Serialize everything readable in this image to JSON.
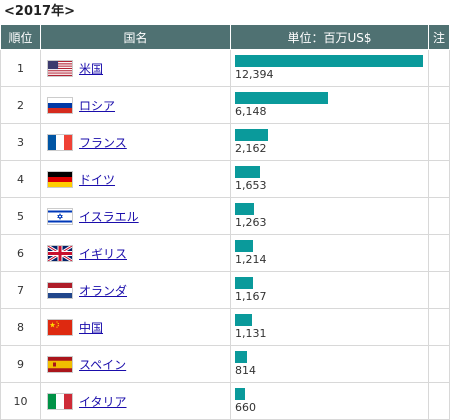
{
  "year_label": "<2017年>",
  "headers": {
    "rank": "順位",
    "country": "国名",
    "value": "単位：百万US$",
    "note": "注"
  },
  "max_value": 12394,
  "rows": [
    {
      "rank": "1",
      "country": "米国",
      "value": "12,394",
      "amount": 12394,
      "flag": "usa-flag-icon"
    },
    {
      "rank": "2",
      "country": "ロシア",
      "value": "6,148",
      "amount": 6148,
      "flag": "russia-flag-icon"
    },
    {
      "rank": "3",
      "country": "フランス",
      "value": "2,162",
      "amount": 2162,
      "flag": "france-flag-icon"
    },
    {
      "rank": "4",
      "country": "ドイツ",
      "value": "1,653",
      "amount": 1653,
      "flag": "germany-flag-icon"
    },
    {
      "rank": "5",
      "country": "イスラエル",
      "value": "1,263",
      "amount": 1263,
      "flag": "israel-flag-icon"
    },
    {
      "rank": "6",
      "country": "イギリス",
      "value": "1,214",
      "amount": 1214,
      "flag": "uk-flag-icon"
    },
    {
      "rank": "7",
      "country": "オランダ",
      "value": "1,167",
      "amount": 1167,
      "flag": "netherlands-flag-icon"
    },
    {
      "rank": "8",
      "country": "中国",
      "value": "1,131",
      "amount": 1131,
      "flag": "china-flag-icon"
    },
    {
      "rank": "9",
      "country": "スペイン",
      "value": "814",
      "amount": 814,
      "flag": "spain-flag-icon"
    },
    {
      "rank": "10",
      "country": "イタリア",
      "value": "660",
      "amount": 660,
      "flag": "italy-flag-icon"
    }
  ],
  "colors": {
    "header_bg": "#4f7172",
    "bar": "#0a9a9b",
    "link": "#1a0dab"
  }
}
